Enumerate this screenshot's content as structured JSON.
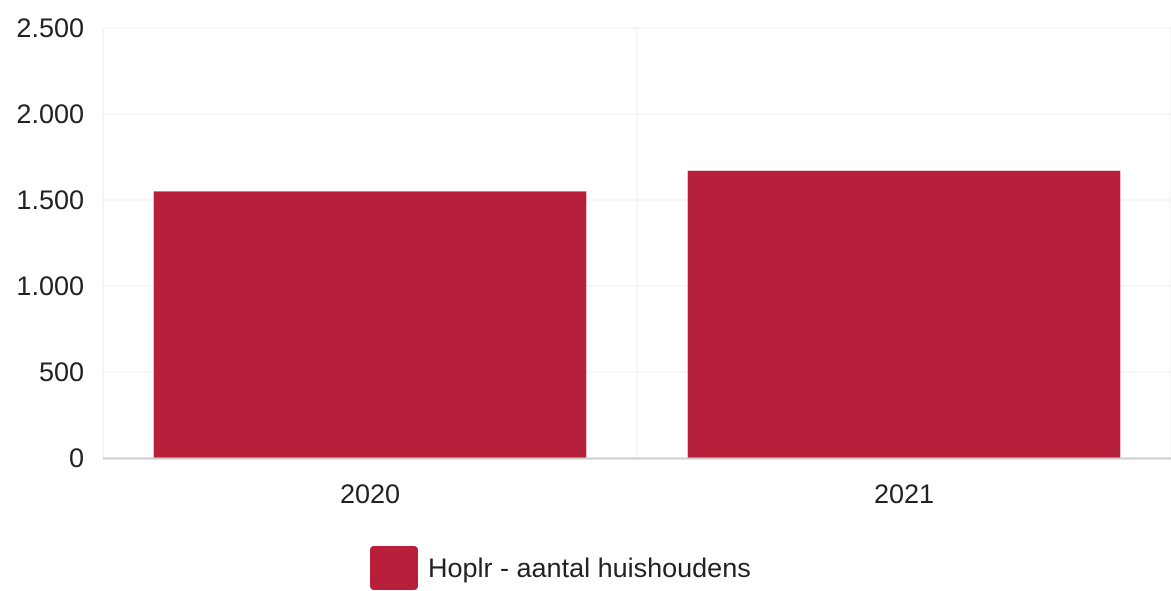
{
  "chart_data": {
    "type": "bar",
    "categories": [
      "2020",
      "2021"
    ],
    "series": [
      {
        "name": "Hoplr - aantal huishoudens",
        "values": [
          1550,
          1670
        ]
      }
    ],
    "ylim": [
      0,
      2500
    ],
    "yticks": [
      0,
      500,
      1000,
      1500,
      2000,
      2500
    ],
    "ytick_labels": [
      "0",
      "500",
      "1.000",
      "1.500",
      "2.000",
      "2.500"
    ],
    "grid": true,
    "legend_position": "bottom",
    "colors": {
      "bar": "#b71f3a",
      "grid": "#ececec",
      "axis": "#cccccc"
    }
  }
}
